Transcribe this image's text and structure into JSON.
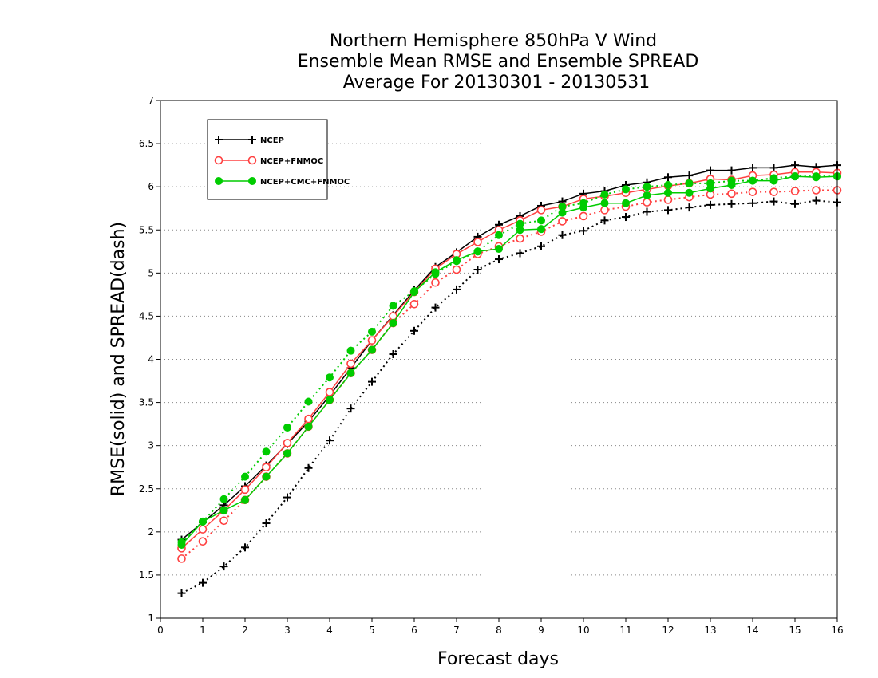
{
  "chart_data": {
    "type": "line",
    "title": [
      "Northern Hemisphere 850hPa V Wind",
      "Ensemble Mean RMSE and Ensemble SPREAD",
      "Average For 20130301 - 20130531"
    ],
    "xlabel": "Forecast days",
    "ylabel": "RMSE(solid) and SPREAD(dash)",
    "xlim": [
      0,
      16
    ],
    "ylim": [
      1,
      7
    ],
    "xticks": [
      0,
      1,
      2,
      3,
      4,
      5,
      6,
      7,
      8,
      9,
      10,
      11,
      12,
      13,
      14,
      15,
      16
    ],
    "yticks": [
      1,
      1.5,
      2,
      2.5,
      3,
      3.5,
      4,
      4.5,
      5,
      5.5,
      6,
      6.5,
      7
    ],
    "ytick_labels": [
      "1",
      "1.5",
      "2",
      "2.5",
      "3",
      "3.5",
      "4",
      "4.5",
      "5",
      "5.5",
      "6",
      "6.5",
      "7"
    ],
    "grid": "horizontal dotted",
    "legend_position": "top-left",
    "x": [
      0.5,
      1,
      1.5,
      2,
      2.5,
      3,
      3.5,
      4,
      4.5,
      5,
      5.5,
      6,
      6.5,
      7,
      7.5,
      8,
      8.5,
      9,
      9.5,
      10,
      10.5,
      11,
      11.5,
      12,
      12.5,
      13,
      13.5,
      14,
      14.5,
      15,
      15.5,
      16
    ],
    "series": [
      {
        "name": "NCEP",
        "metric": "RMSE",
        "line": "solid",
        "color": "#000000",
        "marker": "plus",
        "values": [
          1.91,
          2.11,
          2.31,
          2.53,
          2.77,
          3.02,
          3.28,
          3.58,
          3.9,
          4.22,
          4.51,
          4.8,
          5.07,
          5.24,
          5.42,
          5.56,
          5.66,
          5.78,
          5.83,
          5.92,
          5.95,
          6.02,
          6.05,
          6.11,
          6.13,
          6.19,
          6.19,
          6.22,
          6.22,
          6.25,
          6.23,
          6.25
        ]
      },
      {
        "name": "NCEP",
        "metric": "SPREAD",
        "line": "dash",
        "color": "#000000",
        "marker": "plus",
        "values": [
          1.29,
          1.41,
          1.6,
          1.82,
          2.1,
          2.4,
          2.74,
          3.06,
          3.43,
          3.74,
          4.06,
          4.33,
          4.6,
          4.81,
          5.04,
          5.16,
          5.23,
          5.31,
          5.44,
          5.49,
          5.61,
          5.65,
          5.71,
          5.73,
          5.76,
          5.79,
          5.8,
          5.81,
          5.83,
          5.8,
          5.84,
          5.82
        ]
      },
      {
        "name": "NCEP+FNMOC",
        "metric": "RMSE",
        "line": "solid",
        "color": "#ff4040",
        "marker": "open-circle",
        "values": [
          1.81,
          2.03,
          2.25,
          2.49,
          2.75,
          3.03,
          3.31,
          3.62,
          3.95,
          4.22,
          4.5,
          4.78,
          5.05,
          5.22,
          5.36,
          5.5,
          5.61,
          5.73,
          5.77,
          5.86,
          5.89,
          5.93,
          5.97,
          6.01,
          6.04,
          6.09,
          6.08,
          6.13,
          6.14,
          6.17,
          6.17,
          6.16
        ]
      },
      {
        "name": "NCEP+FNMOC",
        "metric": "SPREAD",
        "line": "dash",
        "color": "#ff4040",
        "marker": "open-circle",
        "values": [
          1.69,
          1.89,
          2.13,
          2.37,
          2.64,
          2.91,
          3.22,
          3.53,
          3.84,
          4.11,
          4.42,
          4.64,
          4.89,
          5.04,
          5.22,
          5.31,
          5.4,
          5.48,
          5.6,
          5.66,
          5.73,
          5.77,
          5.82,
          5.85,
          5.88,
          5.91,
          5.92,
          5.94,
          5.94,
          5.95,
          5.96,
          5.96
        ]
      },
      {
        "name": "NCEP+CMC+FNMOC",
        "metric": "RMSE",
        "line": "solid",
        "color": "#00cc00",
        "marker": "filled-circle",
        "values": [
          1.85,
          2.12,
          2.25,
          2.37,
          2.64,
          2.91,
          3.22,
          3.53,
          3.84,
          4.11,
          4.42,
          4.78,
          5.01,
          5.15,
          5.25,
          5.28,
          5.5,
          5.51,
          5.7,
          5.76,
          5.81,
          5.81,
          5.9,
          5.93,
          5.93,
          5.98,
          6.02,
          6.07,
          6.07,
          6.12,
          6.11,
          6.12
        ]
      },
      {
        "name": "NCEP+CMC+FNMOC",
        "metric": "SPREAD",
        "line": "dash",
        "color": "#00cc00",
        "marker": "filled-circle",
        "values": [
          1.88,
          2.12,
          2.38,
          2.64,
          2.93,
          3.21,
          3.51,
          3.79,
          4.1,
          4.32,
          4.62,
          4.79,
          4.99,
          5.14,
          5.25,
          5.44,
          5.57,
          5.61,
          5.77,
          5.81,
          5.91,
          5.97,
          6.0,
          6.02,
          6.04,
          6.04,
          6.07,
          6.07,
          6.1,
          6.12,
          6.12,
          6.12
        ]
      }
    ],
    "legend": [
      {
        "label": "NCEP",
        "color": "#000000",
        "marker": "plus"
      },
      {
        "label": "NCEP+FNMOC",
        "color": "#ff4040",
        "marker": "open-circle"
      },
      {
        "label": "NCEP+CMC+FNMOC",
        "color": "#00cc00",
        "marker": "filled-circle"
      }
    ]
  }
}
